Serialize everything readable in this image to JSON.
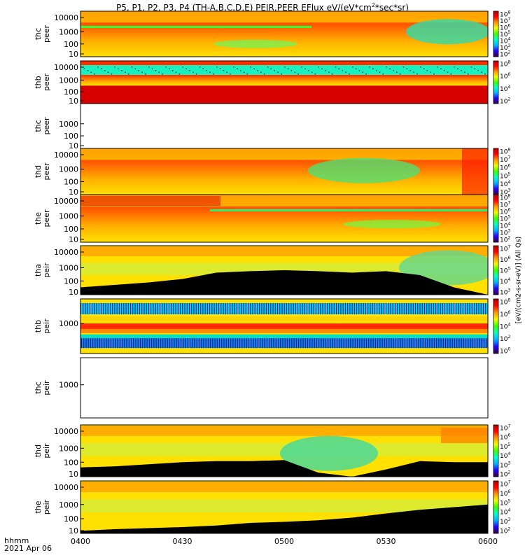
{
  "figure": {
    "title_main": "P5, P1, P2, P3, P4 (TH-A,B,C,D,E) PEIR,PEER EFlux eV/(eV*cm",
    "title_sup": "2",
    "title_tail": "*sec*sr)",
    "time_axis_label": "hhmm",
    "date_label": "2021 Apr 06",
    "side_unit_label": "[eV/(cm2-s-sr-eV)] (All Qs)"
  },
  "colors": {
    "frame": "#000000",
    "background": "#ffffff",
    "colormap": [
      "#3a003a",
      "#2400ff",
      "#00b4ff",
      "#00ffc8",
      "#3cff00",
      "#f0ff00",
      "#ff9a00",
      "#ff0000",
      "#b40000"
    ]
  },
  "chart_data": {
    "type": "heatmap",
    "x_ticks": [
      "0400",
      "0430",
      "0500",
      "0530",
      "0600"
    ],
    "panels": [
      {
        "id": "thc_peer",
        "line1": "thc",
        "line2": "peer",
        "y_ticks": [
          "10000",
          "1000",
          "100",
          "10"
        ],
        "cbar_ticks": [
          "10^8",
          "10^7",
          "10^6",
          "10^5",
          "10^4",
          "10^3",
          "10^2"
        ],
        "has_data": true
      },
      {
        "id": "thb_peer",
        "line1": "thb",
        "line2": "peer",
        "y_ticks": [
          "10000",
          "1000",
          "100",
          "10"
        ],
        "cbar_ticks": [
          "10^8",
          "10^6",
          "10^4",
          "10^2"
        ],
        "has_data": true
      },
      {
        "id": "thc_peer_2",
        "line1": "thc",
        "line2": "peer",
        "y_ticks": [
          "1000",
          "100",
          "10"
        ],
        "cbar_ticks": [],
        "has_data": false
      },
      {
        "id": "thd_peer",
        "line1": "thd",
        "line2": "peer",
        "y_ticks": [
          "10000",
          "1000",
          "100",
          "10"
        ],
        "cbar_ticks": [
          "10^8",
          "10^7",
          "10^6",
          "10^5",
          "10^4",
          "10^3"
        ],
        "has_data": true
      },
      {
        "id": "the_peer",
        "line1": "the",
        "line2": "peer",
        "y_ticks": [
          "10000",
          "1000",
          "100",
          "10"
        ],
        "cbar_ticks": [
          "10^8",
          "10^7",
          "10^6",
          "10^5",
          "10^4",
          "10^3",
          "10^2"
        ],
        "has_data": true
      },
      {
        "id": "tha_peir",
        "line1": "tha",
        "line2": "peir",
        "y_ticks": [
          "10000",
          "1000",
          "100",
          "10"
        ],
        "cbar_ticks": [
          "10^7",
          "10^6",
          "10^5",
          "10^4",
          "10^3"
        ],
        "has_data": true
      },
      {
        "id": "thb_peir",
        "line1": "thb",
        "line2": "peir",
        "y_ticks": [
          "1000"
        ],
        "cbar_ticks": [
          "10^8",
          "10^6",
          "10^4",
          "10^2",
          "10^0"
        ],
        "has_data": true
      },
      {
        "id": "thc_peir",
        "line1": "thc",
        "line2": "peir",
        "y_ticks": [
          "1000"
        ],
        "cbar_ticks": [],
        "has_data": false
      },
      {
        "id": "thd_peir",
        "line1": "thd",
        "line2": "peir",
        "y_ticks": [
          "10000",
          "1000",
          "100",
          "10"
        ],
        "cbar_ticks": [
          "10^7",
          "10^6",
          "10^5",
          "10^4",
          "10^3",
          "10^2"
        ],
        "has_data": true
      },
      {
        "id": "the_peir",
        "line1": "the",
        "line2": "peir",
        "y_ticks": [
          "10000",
          "1000",
          "100",
          "10"
        ],
        "cbar_ticks": [
          "10^7",
          "10^6",
          "10^5",
          "10^4",
          "10^3",
          "10^2"
        ],
        "has_data": true
      }
    ]
  }
}
